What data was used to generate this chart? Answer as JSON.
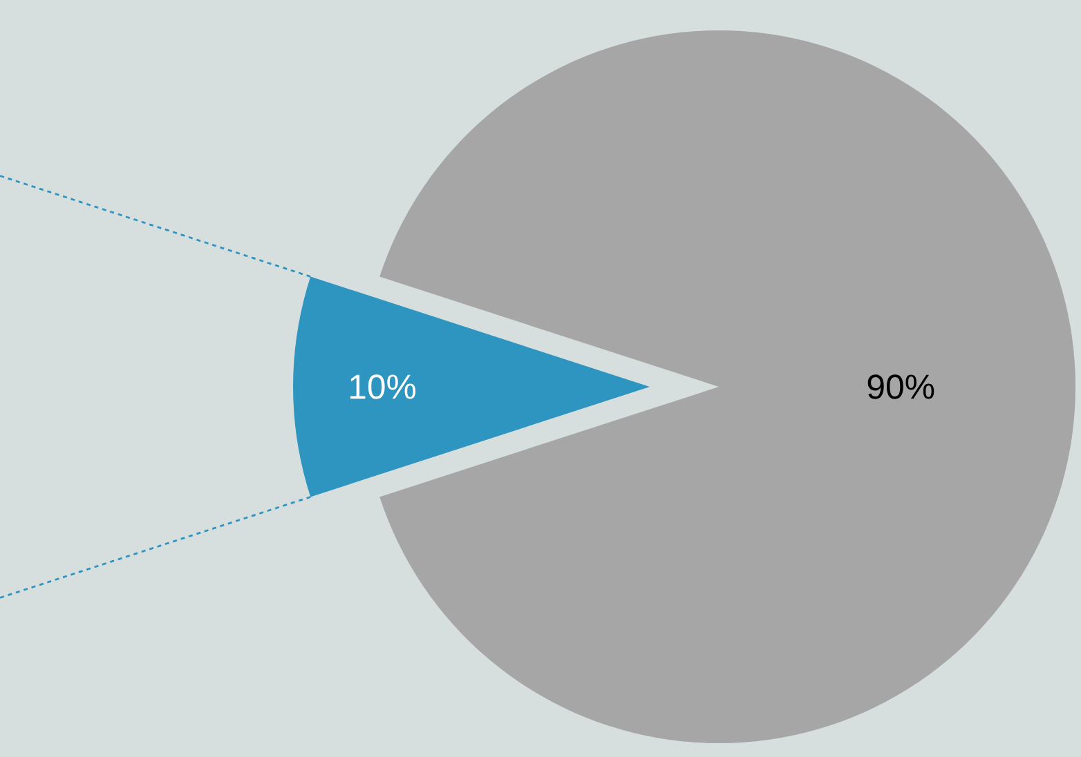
{
  "chart_data": {
    "type": "pie",
    "categories": [
      null,
      null
    ],
    "values": [
      10,
      90
    ],
    "colors": [
      "#2e94c0",
      "#a6a6a6"
    ],
    "value_labels": [
      "10%",
      "90%"
    ]
  }
}
